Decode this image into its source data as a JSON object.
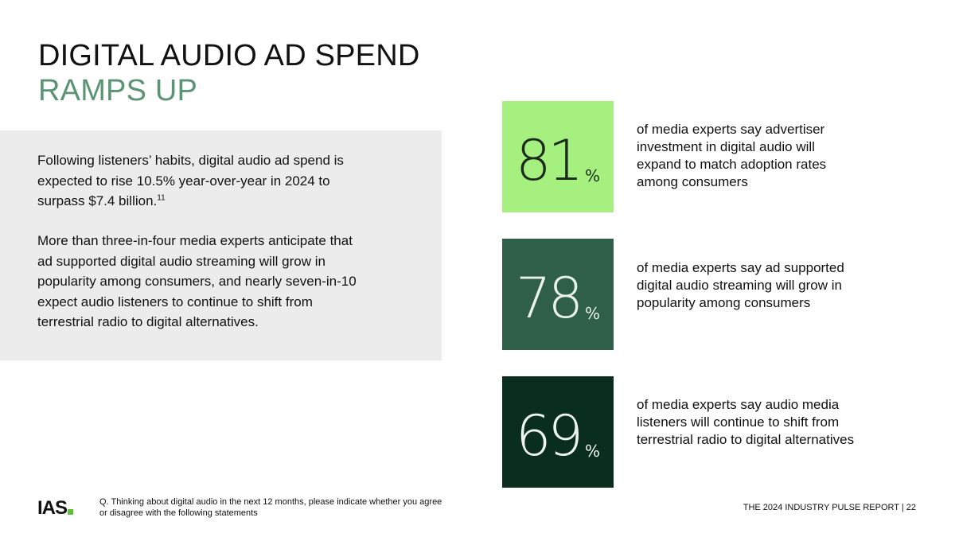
{
  "title": {
    "line1": "DIGITAL AUDIO AD SPEND",
    "line2": "RAMPS UP",
    "line2_color": "#5b9473"
  },
  "panel": {
    "paragraph1": "Following listeners’ habits, digital audio ad spend is expected to rise 10.5% year-over-year in 2024 to surpass $7.4 billion.",
    "paragraph1_sup": "11",
    "paragraph2": "More than three-in-four media experts anticipate that ad supported digital audio streaming will grow in popularity among consumers, and nearly seven-in-10 expect audio listeners to continue to shift from terrestrial radio to digital alternatives."
  },
  "stats": [
    {
      "value": "81",
      "unit": "%",
      "text": "of media experts say advertiser investment in digital audio will expand to match adoption rates among consumers",
      "color": "#a6f07f"
    },
    {
      "value": "78",
      "unit": "%",
      "text": "of media experts say ad supported digital audio streaming will grow in popularity among consumers",
      "color": "#2f5e49"
    },
    {
      "value": "69",
      "unit": "%",
      "text": "of media experts say audio media listeners will continue to shift from terrestrial radio to digital alternatives",
      "color": "#0a2e1e"
    }
  ],
  "footer": {
    "logo": "IAS",
    "logo_icon": "ias-logo-mark-icon",
    "footnote": "Q.  Thinking about digital audio in the next 12 months, please indicate whether you agree or disagree with the following statements",
    "report_label": "THE 2024 INDUSTRY PULSE REPORT  |  22"
  }
}
